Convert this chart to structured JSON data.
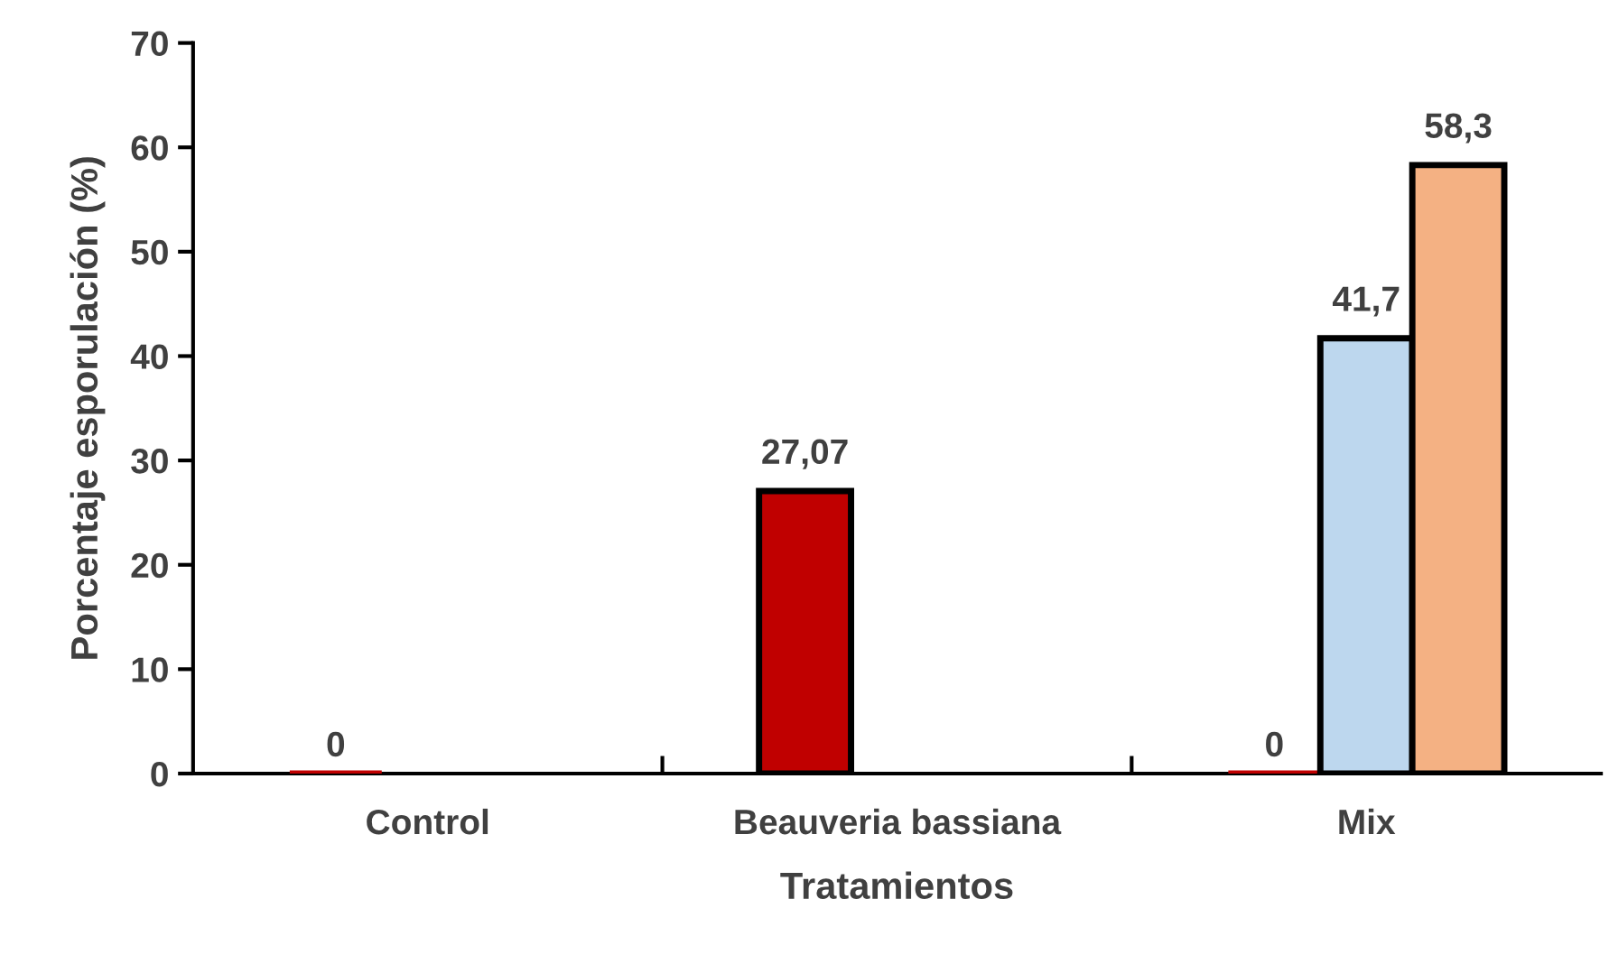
{
  "chart_data": {
    "type": "bar",
    "xlabel": "Tratamientos",
    "ylabel": "Porcentaje esporulación (%)",
    "categories": [
      "Control",
      "Beauveria bassiana",
      "Mix"
    ],
    "series": [
      {
        "color": "#c00000",
        "values": [
          0,
          27.07,
          0
        ],
        "value_labels": [
          "0",
          "27,07",
          "0"
        ]
      },
      {
        "color": "#bdd7ee",
        "values": [
          null,
          null,
          41.7
        ],
        "value_labels": [
          null,
          null,
          "41,7"
        ]
      },
      {
        "color": "#f4b183",
        "values": [
          null,
          null,
          58.3
        ],
        "value_labels": [
          null,
          null,
          "58,3"
        ]
      }
    ],
    "ylim": [
      0,
      70
    ],
    "yticks": [
      0,
      10,
      20,
      30,
      40,
      50,
      60,
      70
    ],
    "grid": false,
    "legend": false
  }
}
